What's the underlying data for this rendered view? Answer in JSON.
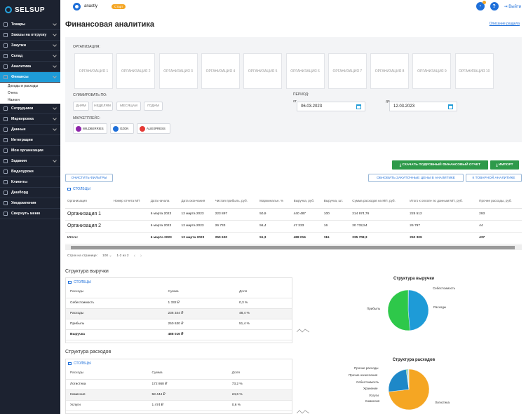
{
  "sidebar": {
    "logo": "SELSUP",
    "items": [
      {
        "label": "Товары",
        "chevron": true
      },
      {
        "label": "Заказы на отгрузку",
        "chevron": true
      },
      {
        "label": "Закупки",
        "chevron": true
      },
      {
        "label": "Склад",
        "chevron": true
      },
      {
        "label": "Аналитика",
        "chevron": true
      },
      {
        "label": "Финансы",
        "chevron": true,
        "active": true
      }
    ],
    "sub_items": [
      "Доходы и расходы",
      "Счета",
      "Налоги"
    ],
    "items2": [
      {
        "label": "Сотрудники",
        "chevron": true
      },
      {
        "label": "Маркировка",
        "chevron": true
      },
      {
        "label": "Данные",
        "chevron": true
      },
      {
        "label": "Интеграции",
        "chevron": false
      },
      {
        "label": "Мои организации",
        "chevron": false
      },
      {
        "label": "Задания",
        "chevron": true
      },
      {
        "label": "Видеоуроки",
        "chevron": false
      },
      {
        "label": "Клиенты",
        "chevron": false
      },
      {
        "label": "Дашборд",
        "chevron": false
      },
      {
        "label": "Уведомления",
        "chevron": false
      },
      {
        "label": "Свернуть меню",
        "chevron": false
      }
    ]
  },
  "topbar": {
    "user": "anastly",
    "tariff": "Старт",
    "notif_count": "2",
    "help": "?",
    "logout": "Выйти"
  },
  "page": {
    "title": "Финансовая аналитика",
    "help_link": "Описание раздела"
  },
  "filters": {
    "org_label": "ОРГАНИЗАЦИЯ:",
    "orgs": [
      "ОРГАНИЗАЦИЯ 1",
      "ОРГАНИЗАЦИЯ 2",
      "ОРГАНИЗАЦИЯ 3",
      "ОРГАНИЗАЦИЯ 4",
      "ОРГАНИЗАЦИЯ 5",
      "ОРГАНИЗАЦИЯ 6",
      "ОРГАНИЗАЦИЯ 7",
      "ОРГАНИЗАЦИЯ 8",
      "ОРГАНИЗАЦИЯ 9",
      "ОРГАНИЗАЦИЯ 10"
    ],
    "sum_label": "СУММИРОВАТЬ ПО:",
    "sum_options": [
      "ДНЯМ",
      "НЕДЕЛЯМ",
      "МЕСЯЦАМ",
      "ГОДАМ"
    ],
    "period_label": "ПЕРИОД:",
    "from_label": "от",
    "from_value": "06.03.2023",
    "to_label": "до",
    "to_value": "12.03.2023",
    "mp_label": "МАРКЕТПЛЕЙС:",
    "marketplaces": [
      {
        "name": "WILDBERRIES",
        "color": "#8e24aa"
      },
      {
        "name": "OZON",
        "color": "#1e6fd9"
      },
      {
        "name": "ALIEXPRESS",
        "color": "#e53935"
      }
    ]
  },
  "actions": {
    "download": "СКАЧАТЬ ПОДРОБНЫЙ ФИНАНСОВЫЙ ОТЧЕТ",
    "import": "ИМПОРТ",
    "clear": "ОЧИСТИТЬ ФИЛЬТРЫ",
    "update_prices": "ОБНОВИТЬ ЗАКУПОЧНЫЕ ЦЕНЫ В АНАЛИТИКЕ",
    "to_goods": "К ТОВАРНОЙ АНАЛИТИКЕ"
  },
  "main_table": {
    "columns_label": "СТОЛБЦЫ",
    "headers": [
      "Организация",
      "Номер отчета МП",
      "Дата начала",
      "Дата окончания",
      "Чистая прибыль, руб.",
      "Маржинальн. %",
      "Выручка, руб.",
      "Выручка, шт.",
      "Сумма расходов на МП, руб.",
      "Итого к оплате по данным МП, руб.",
      "Прочие расходы, руб."
    ],
    "rows": [
      [
        "Организация 1",
        "",
        "6 марта 2023",
        "12 марта 2023",
        "223 897",
        "50,9",
        "440 487",
        "100",
        "214 974,76",
        "225 512",
        "293"
      ],
      [
        "Организация 2",
        "",
        "6 марта 2023",
        "12 марта 2023",
        "26 733",
        "56,4",
        "47 333",
        "16",
        "20 732,54",
        "26 797",
        "44"
      ],
      [
        "Итого:",
        "",
        "6 марта 2023",
        "12 марта 2023",
        "250 630",
        "51,3",
        "488 016",
        "116",
        "235 708,3",
        "252 309",
        "437"
      ]
    ],
    "pager": {
      "rows_label": "Строк на странице:",
      "rows_value": "100",
      "range": "1-2 из 2",
      "prev": "‹",
      "next": "›"
    }
  },
  "revenue_structure": {
    "title": "Структура выручки",
    "columns_label": "СТОЛБЦЫ",
    "headers": [
      "Расходы",
      "Сумма",
      "Доля"
    ],
    "rows": [
      [
        "Себестоимость",
        "1 332 ₽",
        "0,3 %"
      ],
      [
        "Расходы",
        "236 344 ₽",
        "48,4 %"
      ],
      [
        "Прибыль",
        "250 630 ₽",
        "51,4 %"
      ],
      [
        "Выручка",
        "488 016 ₽",
        ""
      ]
    ]
  },
  "expense_structure": {
    "title": "Структура расходов",
    "columns_label": "СТОЛБЦЫ",
    "headers": [
      "Расходы",
      "Сумма",
      "Доля"
    ],
    "rows": [
      [
        "Логистика",
        "172 868 ₽",
        "73,2 %"
      ],
      [
        "Комиссия",
        "58 444 ₽",
        "24,6 %"
      ],
      [
        "Услуги",
        "1 474 ₽",
        "0,6 %"
      ]
    ]
  },
  "chart_data": [
    {
      "type": "pie",
      "title": "Структура выручки",
      "categories": [
        "Себестоимость",
        "Расходы",
        "Прибыль"
      ],
      "values": [
        0.3,
        48.4,
        51.4
      ],
      "colors": [
        "#2e7d32",
        "#1e9bd7",
        "#2ec84a"
      ]
    },
    {
      "type": "pie",
      "title": "Структура расходов",
      "categories": [
        "Логистика",
        "Комиссия",
        "Услуги",
        "Хранение",
        "Себестоимость",
        "Прочие начисления",
        "Прочие расходы"
      ],
      "values": [
        73.2,
        24.6,
        0.6,
        0.6,
        0.6,
        0.2,
        0.2
      ],
      "colors": [
        "#f5a623",
        "#1e88c8",
        "#2ec84a",
        "#888888",
        "#26c6da",
        "#8e24aa",
        "#e53935"
      ]
    }
  ]
}
